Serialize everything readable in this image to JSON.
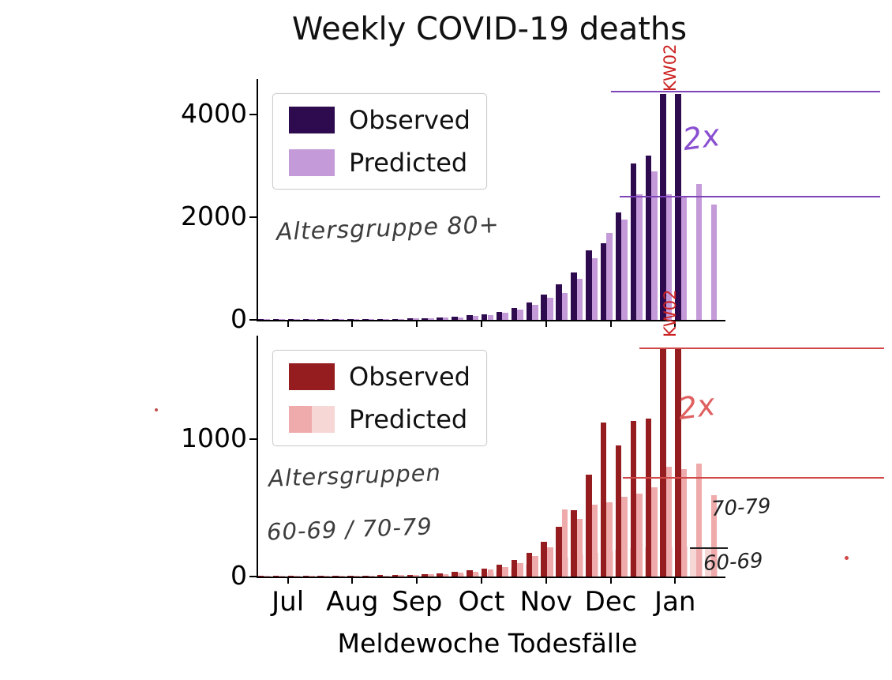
{
  "title": "Weekly COVID-19 deaths",
  "xlabel": "Meldewoche Todesfälle",
  "chart_data": [
    {
      "type": "bar",
      "group_label": "Altersgruppe 80+",
      "ylim": [
        0,
        4700
      ],
      "yticks": [
        0,
        2000,
        4000
      ],
      "x_tick_labels": [
        "Jul",
        "Aug",
        "Sep",
        "Oct",
        "Nov",
        "Dec",
        "Jan"
      ],
      "x_tick_weeks": [
        2.1,
        6.43,
        10.77,
        15.1,
        19.43,
        23.77,
        28.1
      ],
      "legend": [
        "Observed",
        "Predicted"
      ],
      "series": [
        {
          "name": "Observed",
          "role": "observed",
          "color": "#2e0a4f",
          "values": [
            12,
            9,
            13,
            10,
            15,
            12,
            16,
            13,
            18,
            22,
            28,
            34,
            45,
            60,
            85,
            115,
            160,
            230,
            340,
            500,
            700,
            930,
            1350,
            1500,
            2100,
            3050,
            3200,
            4400,
            4400,
            null,
            null
          ]
        },
        {
          "name": "Predicted",
          "role": "predicted",
          "color": "#c49bd8",
          "values": [
            10,
            8,
            11,
            9,
            13,
            10,
            14,
            12,
            16,
            19,
            24,
            30,
            40,
            54,
            75,
            100,
            140,
            200,
            300,
            430,
            520,
            800,
            1200,
            1700,
            1950,
            2450,
            2900,
            2450,
            2400,
            2650,
            2250
          ]
        }
      ],
      "annotations": {
        "kw_label": "KW02",
        "kw_week": 27.6,
        "kw_color": "#cc2222",
        "factor_label": "2x",
        "factor_color": "#8a4fd0",
        "line_color": "#7e44b8",
        "lines": [
          {
            "value": 4450,
            "start_week": 23.8
          },
          {
            "value": 2400,
            "start_week": 24.4
          }
        ]
      }
    },
    {
      "type": "bar",
      "group_label_1": "Altersgruppen",
      "group_label_2": "60-69 / 70-79",
      "side_labels": [
        "70-79",
        "60-69"
      ],
      "ylim": [
        0,
        1750
      ],
      "yticks": [
        0,
        1000
      ],
      "x_tick_labels": [
        "Jul",
        "Aug",
        "Sep",
        "Oct",
        "Nov",
        "Dec",
        "Jan"
      ],
      "x_tick_weeks": [
        2.1,
        6.43,
        10.77,
        15.1,
        19.43,
        23.77,
        28.1
      ],
      "legend": [
        "Observed",
        "Predicted"
      ],
      "series": [
        {
          "name": "Observed",
          "role": "observed",
          "color": "#951c1f",
          "values": [
            4,
            3,
            5,
            4,
            6,
            5,
            7,
            6,
            9,
            11,
            14,
            18,
            24,
            32,
            44,
            60,
            85,
            120,
            175,
            250,
            360,
            480,
            740,
            1120,
            950,
            1130,
            1150,
            1650,
            1650,
            null,
            null
          ]
        },
        {
          "name": "Predicted",
          "role": "predicted",
          "color": "#efabab",
          "values": [
            3,
            3,
            4,
            3,
            5,
            4,
            6,
            5,
            8,
            9,
            12,
            15,
            20,
            27,
            37,
            50,
            70,
            100,
            150,
            215,
            490,
            420,
            520,
            540,
            580,
            600,
            650,
            800,
            780,
            820,
            590
          ]
        },
        {
          "name": "Predicted 60-69",
          "role": "predicted2",
          "color": "#f7d6d6",
          "values": [
            2,
            2,
            3,
            2,
            3,
            3,
            4,
            4,
            5,
            6,
            8,
            10,
            13,
            17,
            23,
            31,
            42,
            60,
            85,
            120,
            140,
            160,
            175,
            185,
            195,
            205,
            210,
            215,
            220,
            215,
            200
          ]
        }
      ],
      "annotations": {
        "kw_label": "KW02",
        "kw_week": 27.6,
        "kw_color": "#cc2222",
        "factor_label": "2x",
        "factor_color": "#e06060",
        "line_color": "#d04848",
        "lines": [
          {
            "value": 1660,
            "start_week": 25.7
          },
          {
            "value": 720,
            "start_week": 24.6
          }
        ]
      }
    }
  ]
}
